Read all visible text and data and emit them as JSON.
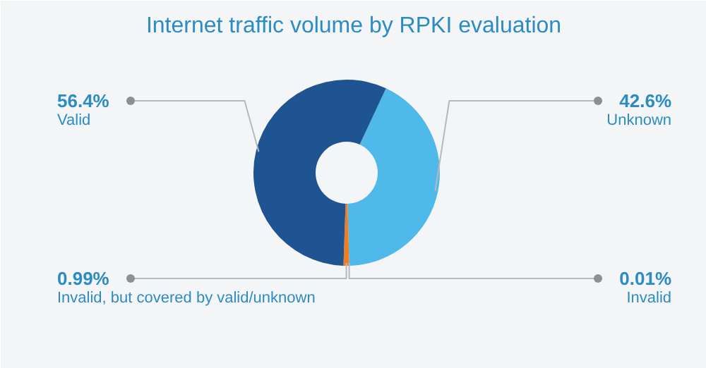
{
  "chart_data": {
    "type": "donut",
    "title": "Internet traffic volume by RPKI evaluation",
    "categories": [
      "Unknown",
      "Invalid",
      "Invalid, but covered by valid/unknown",
      "Valid"
    ],
    "values": [
      42.6,
      0.01,
      0.99,
      56.4
    ],
    "value_labels": [
      "42.6%",
      "0.01%",
      "0.99%",
      "56.4%"
    ],
    "colors": [
      "#4fb9e9",
      "#d9534f",
      "#f07d22",
      "#1f5493"
    ]
  }
}
